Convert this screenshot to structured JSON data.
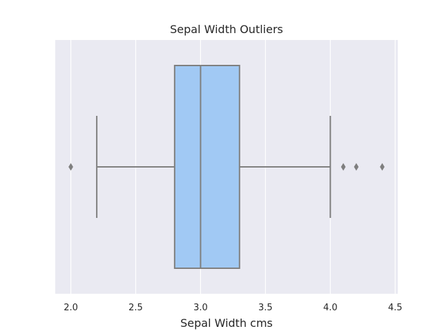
{
  "chart_data": {
    "type": "boxplot",
    "title": "Sepal Width Outliers",
    "xlabel": "Sepal Width cms",
    "ylabel": "",
    "orientation": "horizontal",
    "xlim": [
      1.88,
      4.52
    ],
    "xticks": [
      2.0,
      2.5,
      3.0,
      3.5,
      4.0,
      4.5
    ],
    "xtick_labels": [
      "2.0",
      "2.5",
      "3.0",
      "3.5",
      "4.0",
      "4.5"
    ],
    "grid": true,
    "box": {
      "whisker_low": 2.2,
      "q1": 2.8,
      "median": 3.0,
      "q3": 3.3,
      "whisker_high": 4.0,
      "outliers": [
        2.0,
        4.1,
        4.2,
        4.4
      ]
    },
    "colors": {
      "background": "#eaeaf2",
      "grid": "#ffffff",
      "box_fill": "#a1c9f4",
      "lines": "#7f7f7f",
      "outlier": "#7f7f7f"
    }
  }
}
